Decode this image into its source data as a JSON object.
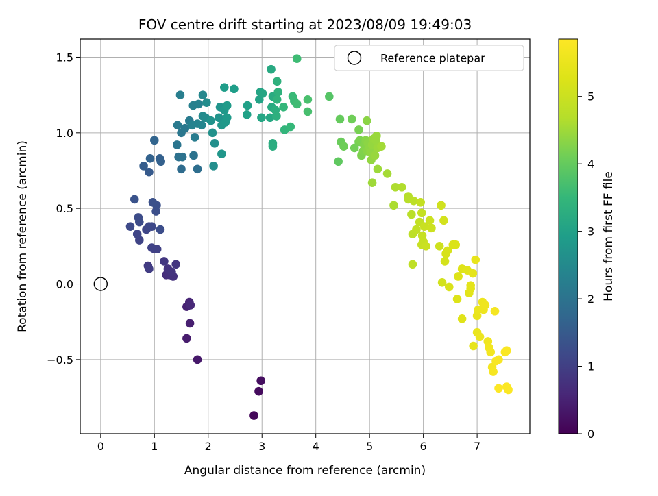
{
  "chart_data": {
    "type": "scatter",
    "title": "FOV centre drift starting at 2023/08/09 19:49:03",
    "xlabel": "Angular distance from reference (arcmin)",
    "ylabel": "Rotation from reference (arcmin)",
    "xlim": [
      -0.38,
      7.98
    ],
    "ylim": [
      -0.99,
      1.62
    ],
    "xticks": [
      "0",
      "1",
      "2",
      "3",
      "4",
      "5",
      "6",
      "7"
    ],
    "yticks": [
      "−0.5",
      "0.0",
      "0.5",
      "1.0",
      "1.5"
    ],
    "grid": true,
    "legend": {
      "placement": "top-right",
      "label": "Reference platepar"
    },
    "reference_point": {
      "x": 0,
      "y": 0
    },
    "colorbar": {
      "label": "Hours from first FF file",
      "range": [
        0,
        5.85
      ],
      "ticks": [
        "0",
        "1",
        "2",
        "3",
        "4",
        "5"
      ],
      "colormap": "viridis"
    },
    "points": [
      [
        2.85,
        -0.87,
        0.1
      ],
      [
        2.94,
        -0.71,
        0.15
      ],
      [
        2.98,
        -0.64,
        0.2
      ],
      [
        1.8,
        -0.5,
        0.35
      ],
      [
        1.6,
        -0.36,
        0.4
      ],
      [
        1.66,
        -0.26,
        0.45
      ],
      [
        1.6,
        -0.15,
        0.5
      ],
      [
        1.65,
        -0.12,
        0.55
      ],
      [
        1.67,
        -0.14,
        0.6
      ],
      [
        1.22,
        0.06,
        0.7
      ],
      [
        1.28,
        0.06,
        0.72
      ],
      [
        1.35,
        0.05,
        0.75
      ],
      [
        1.25,
        0.1,
        0.78
      ],
      [
        1.32,
        0.08,
        0.8
      ],
      [
        1.4,
        0.13,
        0.82
      ],
      [
        1.18,
        0.15,
        0.85
      ],
      [
        0.88,
        0.12,
        0.9
      ],
      [
        0.9,
        0.1,
        0.95
      ],
      [
        1.0,
        0.23,
        1.0
      ],
      [
        1.05,
        0.23,
        1.02
      ],
      [
        0.95,
        0.24,
        1.05
      ],
      [
        0.72,
        0.29,
        1.08
      ],
      [
        0.68,
        0.33,
        1.1
      ],
      [
        0.85,
        0.36,
        1.12
      ],
      [
        0.9,
        0.38,
        1.14
      ],
      [
        0.95,
        0.38,
        1.16
      ],
      [
        0.55,
        0.38,
        1.18
      ],
      [
        0.72,
        0.41,
        1.2
      ],
      [
        0.7,
        0.44,
        1.22
      ],
      [
        1.11,
        0.36,
        1.25
      ],
      [
        1.03,
        0.48,
        1.28
      ],
      [
        1.04,
        0.52,
        1.3
      ],
      [
        0.97,
        0.54,
        1.32
      ],
      [
        0.63,
        0.56,
        1.35
      ],
      [
        0.9,
        0.74,
        1.5
      ],
      [
        0.8,
        0.78,
        1.55
      ],
      [
        1.1,
        0.83,
        1.6
      ],
      [
        1.12,
        0.81,
        1.62
      ],
      [
        0.92,
        0.83,
        1.65
      ],
      [
        1.0,
        0.95,
        1.7
      ],
      [
        1.5,
        0.76,
        1.85
      ],
      [
        1.8,
        0.76,
        1.9
      ],
      [
        1.45,
        0.84,
        1.95
      ],
      [
        1.52,
        0.84,
        1.97
      ],
      [
        1.73,
        0.85,
        2.0
      ],
      [
        1.42,
        0.92,
        2.05
      ],
      [
        1.5,
        1.0,
        2.1
      ],
      [
        1.57,
        1.03,
        2.12
      ],
      [
        1.43,
        1.05,
        2.15
      ],
      [
        1.65,
        1.08,
        2.18
      ],
      [
        1.75,
        0.97,
        2.2
      ],
      [
        1.48,
        1.25,
        2.25
      ],
      [
        1.72,
        1.18,
        2.3
      ],
      [
        1.82,
        1.19,
        2.32
      ],
      [
        1.7,
        1.05,
        2.35
      ],
      [
        1.8,
        1.06,
        2.37
      ],
      [
        1.88,
        1.05,
        2.4
      ],
      [
        1.9,
        1.25,
        2.45
      ],
      [
        1.9,
        1.11,
        2.5
      ],
      [
        1.95,
        1.1,
        2.52
      ],
      [
        1.97,
        1.2,
        2.55
      ],
      [
        2.1,
        0.78,
        2.6
      ],
      [
        2.12,
        0.93,
        2.62
      ],
      [
        2.08,
        1.0,
        2.65
      ],
      [
        2.05,
        1.08,
        2.68
      ],
      [
        2.2,
        1.1,
        2.7
      ],
      [
        2.22,
        1.17,
        2.72
      ],
      [
        2.25,
        0.86,
        2.75
      ],
      [
        2.25,
        1.05,
        2.78
      ],
      [
        2.3,
        1.15,
        2.8
      ],
      [
        2.32,
        1.07,
        2.82
      ],
      [
        2.35,
        1.1,
        2.85
      ],
      [
        2.35,
        1.18,
        2.87
      ],
      [
        2.3,
        1.3,
        2.9
      ],
      [
        2.48,
        1.29,
        2.93
      ],
      [
        2.73,
        1.18,
        2.98
      ],
      [
        2.72,
        1.12,
        3.0
      ],
      [
        2.95,
        1.22,
        3.05
      ],
      [
        2.97,
        1.27,
        3.07
      ],
      [
        3.01,
        1.26,
        3.1
      ],
      [
        2.99,
        1.1,
        3.12
      ],
      [
        3.15,
        1.1,
        3.15
      ],
      [
        3.17,
        1.42,
        3.18
      ],
      [
        3.18,
        1.17,
        3.2
      ],
      [
        3.2,
        1.24,
        3.22
      ],
      [
        3.2,
        0.93,
        3.25
      ],
      [
        3.2,
        0.91,
        3.27
      ],
      [
        3.25,
        1.15,
        3.3
      ],
      [
        3.27,
        1.11,
        3.32
      ],
      [
        3.28,
        1.34,
        3.35
      ],
      [
        3.3,
        1.27,
        3.37
      ],
      [
        3.28,
        1.22,
        3.4
      ],
      [
        3.42,
        1.02,
        3.45
      ],
      [
        3.4,
        1.17,
        3.48
      ],
      [
        3.53,
        1.04,
        3.5
      ],
      [
        3.57,
        1.24,
        3.55
      ],
      [
        3.6,
        1.21,
        3.57
      ],
      [
        3.65,
        1.49,
        3.6
      ],
      [
        3.65,
        1.19,
        3.62
      ],
      [
        3.85,
        1.14,
        3.7
      ],
      [
        3.85,
        1.22,
        3.72
      ],
      [
        4.25,
        1.24,
        3.85
      ],
      [
        4.42,
        0.81,
        3.95
      ],
      [
        4.45,
        1.09,
        4.0
      ],
      [
        4.47,
        0.94,
        4.05
      ],
      [
        4.52,
        0.91,
        4.08
      ],
      [
        4.67,
        1.09,
        4.1
      ],
      [
        4.72,
        0.9,
        4.12
      ],
      [
        4.8,
        0.94,
        4.15
      ],
      [
        4.8,
        1.02,
        4.17
      ],
      [
        4.82,
        0.95,
        4.2
      ],
      [
        4.85,
        0.85,
        4.22
      ],
      [
        4.88,
        0.88,
        4.24
      ],
      [
        4.9,
        0.92,
        4.26
      ],
      [
        4.92,
        0.9,
        4.28
      ],
      [
        4.93,
        0.95,
        4.3
      ],
      [
        4.95,
        0.88,
        4.32
      ],
      [
        4.95,
        1.08,
        4.33
      ],
      [
        4.97,
        0.93,
        4.34
      ],
      [
        5.0,
        0.9,
        4.36
      ],
      [
        5.02,
        0.87,
        4.38
      ],
      [
        5.03,
        0.82,
        4.4
      ],
      [
        5.05,
        0.92,
        4.42
      ],
      [
        5.07,
        0.96,
        4.43
      ],
      [
        5.1,
        0.85,
        4.44
      ],
      [
        5.12,
        0.95,
        4.45
      ],
      [
        5.13,
        0.98,
        4.46
      ],
      [
        5.15,
        0.9,
        4.47
      ],
      [
        5.15,
        0.76,
        4.48
      ],
      [
        5.05,
        0.67,
        4.5
      ],
      [
        5.22,
        0.91,
        4.52
      ],
      [
        5.33,
        0.73,
        4.55
      ],
      [
        5.45,
        0.52,
        4.6
      ],
      [
        5.48,
        0.64,
        4.62
      ],
      [
        5.6,
        0.64,
        4.65
      ],
      [
        5.72,
        0.58,
        4.7
      ],
      [
        5.72,
        0.56,
        4.72
      ],
      [
        5.78,
        0.46,
        4.75
      ],
      [
        5.82,
        0.55,
        4.78
      ],
      [
        5.8,
        0.33,
        4.8
      ],
      [
        5.8,
        0.13,
        4.82
      ],
      [
        5.87,
        0.36,
        4.85
      ],
      [
        5.93,
        0.41,
        4.87
      ],
      [
        5.95,
        0.54,
        4.9
      ],
      [
        5.97,
        0.47,
        4.92
      ],
      [
        5.98,
        0.32,
        4.93
      ],
      [
        5.97,
        0.26,
        4.94
      ],
      [
        6.0,
        0.28,
        4.95
      ],
      [
        6.02,
        0.38,
        4.97
      ],
      [
        6.05,
        0.25,
        4.99
      ],
      [
        6.12,
        0.42,
        5.0
      ],
      [
        6.15,
        0.37,
        5.02
      ],
      [
        6.3,
        0.25,
        5.05
      ],
      [
        6.33,
        0.52,
        5.08
      ],
      [
        6.35,
        0.01,
        5.1
      ],
      [
        6.38,
        0.42,
        5.12
      ],
      [
        6.4,
        0.15,
        5.14
      ],
      [
        6.42,
        0.2,
        5.16
      ],
      [
        6.45,
        0.22,
        5.18
      ],
      [
        6.48,
        -0.02,
        5.2
      ],
      [
        6.55,
        0.26,
        5.22
      ],
      [
        6.6,
        0.26,
        5.24
      ],
      [
        6.63,
        -0.1,
        5.26
      ],
      [
        6.65,
        0.05,
        5.28
      ],
      [
        6.72,
        0.1,
        5.3
      ],
      [
        6.72,
        -0.23,
        5.32
      ],
      [
        6.82,
        0.09,
        5.34
      ],
      [
        6.85,
        -0.06,
        5.36
      ],
      [
        6.88,
        -0.03,
        5.38
      ],
      [
        6.88,
        -0.01,
        5.4
      ],
      [
        6.92,
        0.07,
        5.42
      ],
      [
        6.93,
        -0.41,
        5.44
      ],
      [
        6.97,
        0.16,
        5.46
      ],
      [
        7.0,
        -0.21,
        5.48
      ],
      [
        7.0,
        -0.32,
        5.5
      ],
      [
        7.02,
        -0.17,
        5.52
      ],
      [
        7.05,
        -0.35,
        5.54
      ],
      [
        7.1,
        -0.12,
        5.56
      ],
      [
        7.12,
        -0.17,
        5.58
      ],
      [
        7.15,
        -0.14,
        5.6
      ],
      [
        7.2,
        -0.38,
        5.62
      ],
      [
        7.22,
        -0.42,
        5.64
      ],
      [
        7.25,
        -0.45,
        5.66
      ],
      [
        7.28,
        -0.55,
        5.68
      ],
      [
        7.33,
        -0.18,
        5.7
      ],
      [
        7.3,
        -0.58,
        5.72
      ],
      [
        7.35,
        -0.51,
        5.74
      ],
      [
        7.4,
        -0.5,
        5.76
      ],
      [
        7.52,
        -0.45,
        5.78
      ],
      [
        7.55,
        -0.44,
        5.8
      ],
      [
        7.55,
        -0.68,
        5.81
      ],
      [
        7.58,
        -0.7,
        5.82
      ],
      [
        7.4,
        -0.69,
        5.83
      ]
    ]
  }
}
